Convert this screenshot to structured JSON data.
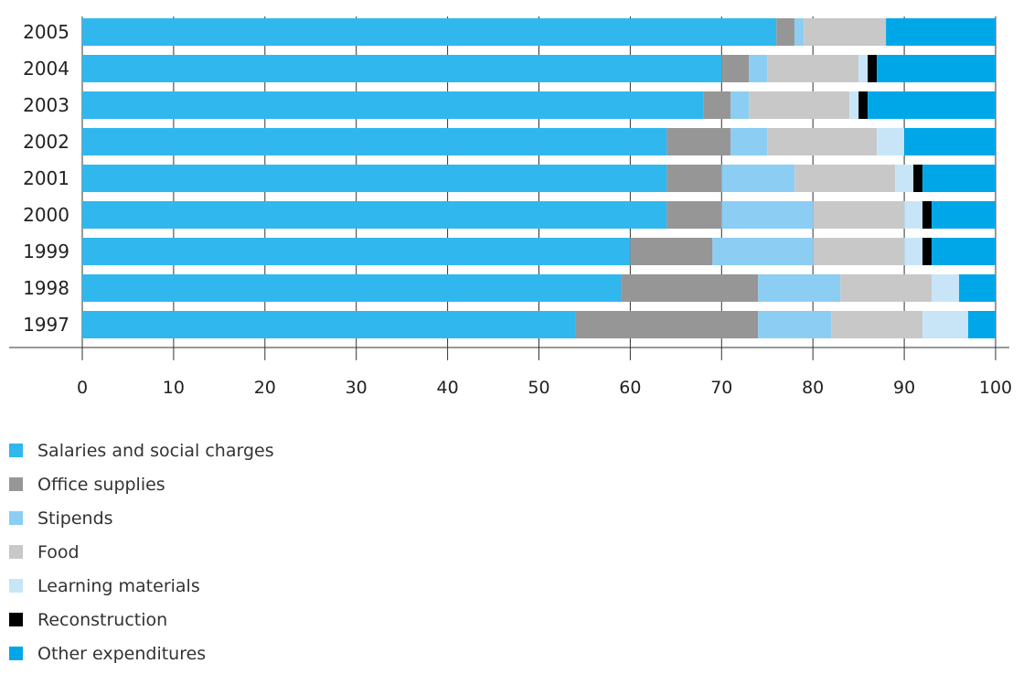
{
  "chart_data": {
    "type": "bar",
    "orientation": "horizontal",
    "stacked": true,
    "title": "",
    "xlabel": "",
    "ylabel": "",
    "categories": [
      "2005",
      "2004",
      "2003",
      "2002",
      "2001",
      "2000",
      "1999",
      "1998",
      "1997"
    ],
    "xlim": [
      0,
      100
    ],
    "xticks": [
      "0",
      "10",
      "20",
      "30",
      "40",
      "50",
      "60",
      "70",
      "80",
      "90",
      "100"
    ],
    "grid": "vertical",
    "legend_position": "bottom-left",
    "series": [
      {
        "name": "Salaries and social charges",
        "color": "#30b7ee",
        "values": [
          76,
          70,
          68,
          64,
          64,
          64,
          60,
          59,
          54
        ]
      },
      {
        "name": "Office  supplies",
        "color": "#969696",
        "values": [
          2,
          3,
          3,
          7,
          6,
          6,
          9,
          15,
          20
        ]
      },
      {
        "name": "Stipends",
        "color": "#8ccdf3",
        "values": [
          1,
          2,
          2,
          4,
          8,
          10,
          11,
          9,
          8
        ]
      },
      {
        "name": "Food",
        "color": "#c8c8c8",
        "values": [
          9,
          10,
          11,
          12,
          11,
          10,
          10,
          10,
          10
        ]
      },
      {
        "name": "Learning materials",
        "color": "#c8e5f8",
        "values": [
          0,
          1,
          1,
          3,
          2,
          2,
          2,
          3,
          5
        ]
      },
      {
        "name": "Reconstruction",
        "color": "#000000",
        "values": [
          0,
          1,
          1,
          0,
          1,
          1,
          1,
          0,
          0
        ]
      },
      {
        "name": "Other expenditures",
        "color": "#00a7e8",
        "values": [
          12,
          13,
          14,
          10,
          8,
          7,
          7,
          4,
          3
        ]
      }
    ]
  }
}
